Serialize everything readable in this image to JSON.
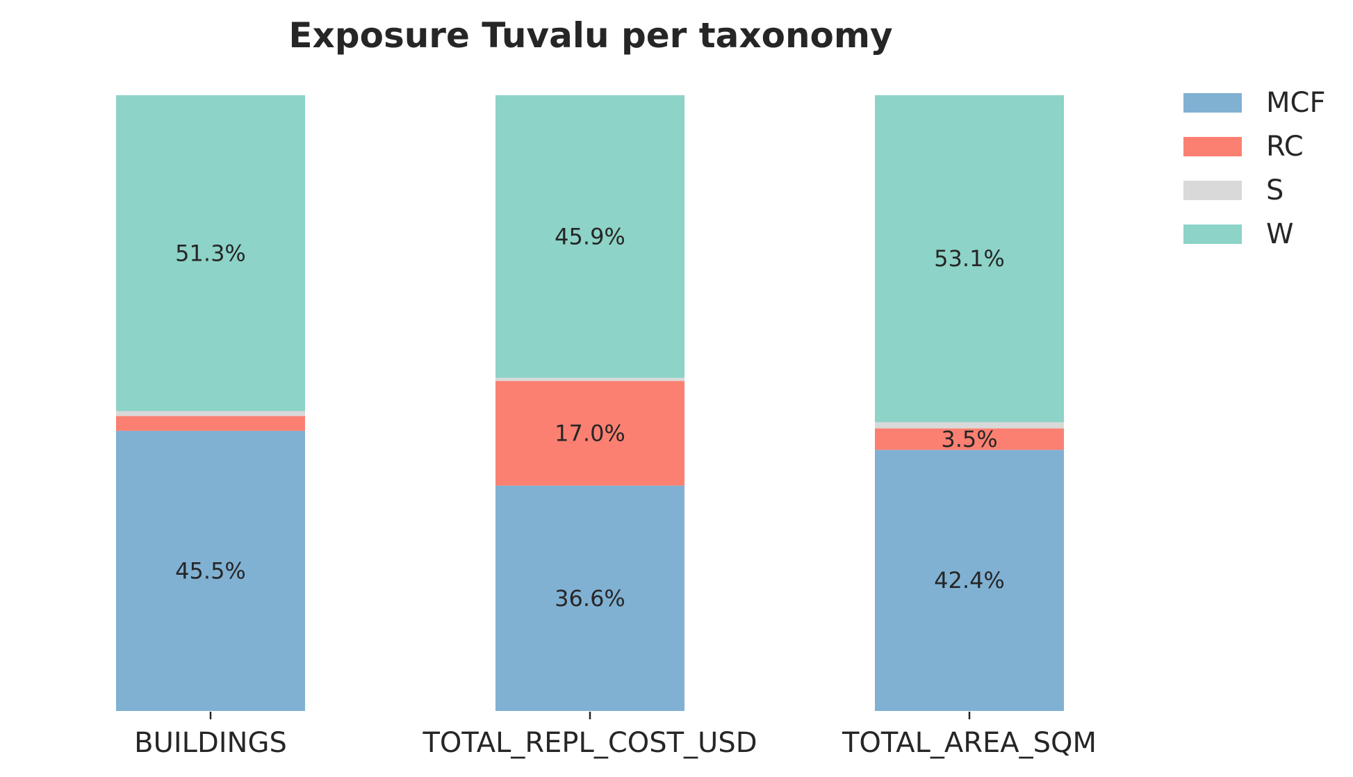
{
  "chart_data": {
    "type": "bar",
    "stacked": true,
    "normalized": true,
    "title": "Exposure Tuvalu per taxonomy",
    "xlabel": "",
    "ylabel": "",
    "ylim": [
      0,
      100
    ],
    "grid": false,
    "legend_position": "top-right, outside plot",
    "categories": [
      "BUILDINGS",
      "TOTAL_REPL_COST_USD",
      "TOTAL_AREA_SQM"
    ],
    "series": [
      {
        "name": "MCF",
        "color": "#80b1d3",
        "values": [
          45.5,
          36.6,
          42.4
        ],
        "labels": [
          "45.5%",
          "36.6%",
          "42.4%"
        ]
      },
      {
        "name": "RC",
        "color": "#fb8072",
        "values": [
          2.4,
          17.0,
          3.5
        ],
        "labels": [
          "",
          "17.0%",
          "3.5%"
        ]
      },
      {
        "name": "S",
        "color": "#d9d9d9",
        "values": [
          0.8,
          0.5,
          1.0
        ],
        "labels": [
          "",
          "",
          ""
        ]
      },
      {
        "name": "W",
        "color": "#8dd3c7",
        "values": [
          51.3,
          45.9,
          53.1
        ],
        "labels": [
          "51.3%",
          "45.9%",
          "53.1%"
        ]
      }
    ]
  }
}
